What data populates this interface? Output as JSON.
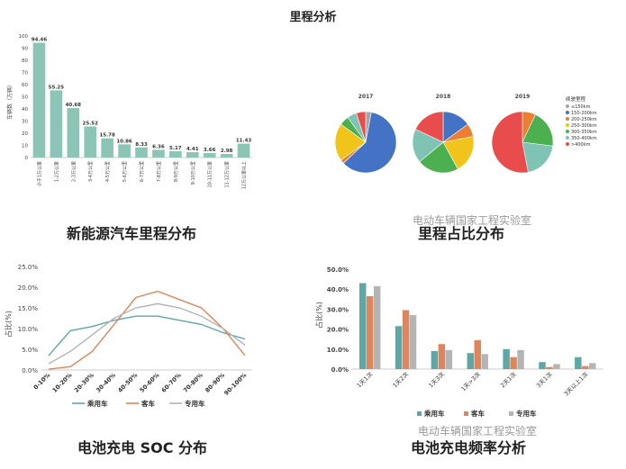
{
  "page": {
    "title": "里程分析"
  },
  "watermark": "电动车辆国家工程实验室",
  "colors": {
    "teal": "#8cc5b6",
    "passenger": "#5ea7a7",
    "bus": "#e0845a",
    "special": "#b4b4b4"
  },
  "chart_data": [
    {
      "type": "bar",
      "caption": "新能源汽车里程分布",
      "ylabel": "车辆数（万辆）",
      "ylim": [
        0,
        100
      ],
      "yticks": [
        "0",
        "10",
        "20",
        "30",
        "40",
        "50",
        "60",
        "70",
        "80",
        "90",
        "100"
      ],
      "categories": [
        "小于1万公里",
        "1-2万公里",
        "2-3万公里",
        "3-4万公里",
        "4-5万公里",
        "5-6万公里",
        "6-7万公里",
        "7-8万公里",
        "8-9万公里",
        "9-10万公里",
        "10-11万公里",
        "11-12万公里",
        "12万公里以上"
      ],
      "values": [
        94.46,
        55.25,
        40.68,
        25.52,
        15.78,
        10.86,
        8.33,
        6.36,
        5.17,
        4.41,
        3.66,
        2.98,
        11.43
      ],
      "value_labels": [
        "94.46",
        "55.25",
        "40.68",
        "25.52",
        "15.78",
        "10.86",
        "8.33",
        "6.36",
        "5.17",
        "4.41",
        "3.66",
        "2.98",
        "11.43"
      ]
    },
    {
      "type": "pie",
      "caption": "里程占比分布",
      "legend_title": "续驶里程",
      "legend": [
        "≤150km",
        "150-200km",
        "200-250km",
        "250-300km",
        "300-350km",
        "350-400km",
        ">400km"
      ],
      "colors": [
        "#a5a5a5",
        "#4472c4",
        "#ed7d31",
        "#f0c419",
        "#4caf50",
        "#7fc3b4",
        "#e84c4c"
      ],
      "pies": [
        {
          "year": "2017",
          "values": [
            3,
            60,
            2,
            20,
            5,
            5,
            5
          ]
        },
        {
          "year": "2018",
          "values": [
            0,
            15,
            7,
            20,
            22,
            18,
            18
          ]
        },
        {
          "year": "2019",
          "values": [
            0,
            0,
            7,
            0,
            20,
            20,
            53
          ]
        }
      ]
    },
    {
      "type": "line",
      "caption": "电池充电 SOC 分布",
      "ylabel": "占比(%)",
      "ylim": [
        0,
        25
      ],
      "yticks": [
        "0.0%",
        "5.0%",
        "10.0%",
        "15.0%",
        "20.0%",
        "25.0%"
      ],
      "categories": [
        "0-10%",
        "10-20%",
        "20-30%",
        "30-40%",
        "40-50%",
        "50-60%",
        "60-70%",
        "70-80%",
        "80-90%",
        "90-100%"
      ],
      "series": [
        {
          "name": "乘用车",
          "color": "#5ea7a7",
          "values": [
            3.5,
            9.5,
            10.5,
            12,
            13,
            13,
            12,
            11,
            9,
            7.5
          ]
        },
        {
          "name": "客车",
          "color": "#e0845a",
          "values": [
            0.2,
            0.8,
            4.5,
            11,
            17.5,
            19,
            17,
            15,
            10,
            3.5
          ]
        },
        {
          "name": "专用车",
          "color": "#b4b4b4",
          "values": [
            1.5,
            4.5,
            8.5,
            12.5,
            15,
            16,
            15,
            13,
            10,
            6
          ]
        }
      ]
    },
    {
      "type": "bar",
      "caption": "电池充电频率分析",
      "ylabel": "占比(%)",
      "ylim": [
        0,
        50
      ],
      "yticks": [
        "0.0%",
        "10.0%",
        "20.0%",
        "30.0%",
        "40.0%",
        "50.0%"
      ],
      "categories": [
        "1天1次",
        "1天2次",
        "1天3次",
        "1天>3次",
        "2天1次",
        "3天1次",
        "3天以上1次"
      ],
      "series": [
        {
          "name": "乘用车",
          "color": "#5ea7a7",
          "values": [
            43,
            21.5,
            9,
            8,
            10,
            3.5,
            6
          ]
        },
        {
          "name": "客车",
          "color": "#e0845a",
          "values": [
            36.5,
            29.5,
            12.5,
            14.5,
            6,
            1,
            1.5
          ]
        },
        {
          "name": "专用车",
          "color": "#b4b4b4",
          "values": [
            41.5,
            27,
            9.5,
            7.5,
            9.5,
            2.5,
            3
          ]
        }
      ]
    }
  ]
}
